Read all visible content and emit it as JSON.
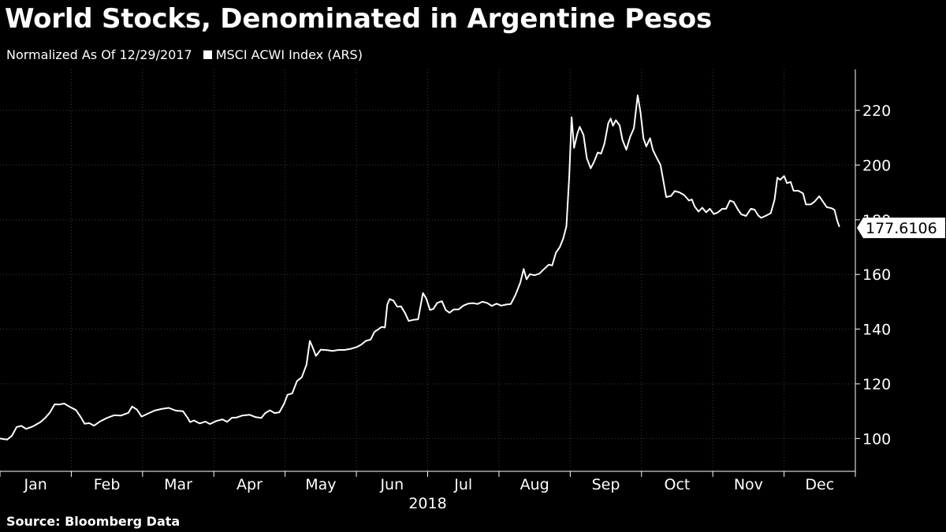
{
  "title": "World Stocks, Denominated in Argentine Pesos",
  "subtitle": "Normalized As Of 12/29/2017",
  "legend": [
    {
      "label": "MSCI ACWI Index (ARS)",
      "color": "#ffffff"
    }
  ],
  "source": "Source: Bloomberg Data",
  "chart_data": {
    "type": "line",
    "title": "World Stocks, Denominated in Argentine Pesos",
    "subtitle": "Normalized As Of 12/29/2017",
    "xlabel": "2018",
    "ylabel": "",
    "months": [
      "Jan",
      "Feb",
      "Mar",
      "Apr",
      "May",
      "Jun",
      "Jul",
      "Aug",
      "Sep",
      "Oct",
      "Nov",
      "Dec"
    ],
    "year_label": "2018",
    "ylim": [
      88,
      235
    ],
    "yticks": [
      100,
      120,
      140,
      160,
      180,
      200,
      220
    ],
    "grid": true,
    "last_value_label": "177.6106",
    "series": [
      {
        "name": "MSCI ACWI Index (ARS)",
        "color": "#ffffff",
        "points": [
          [
            0.0,
            100.0
          ],
          [
            0.15,
            99.6
          ],
          [
            0.25,
            101.0
          ],
          [
            0.35,
            104.2
          ],
          [
            0.45,
            104.6
          ],
          [
            0.55,
            103.5
          ],
          [
            0.7,
            104.5
          ],
          [
            0.85,
            106.0
          ],
          [
            0.95,
            107.5
          ],
          [
            1.05,
            109.5
          ],
          [
            1.15,
            112.5
          ],
          [
            1.25,
            112.4
          ],
          [
            1.35,
            112.8
          ],
          [
            1.5,
            111.3
          ],
          [
            1.6,
            110.4
          ],
          [
            1.7,
            107.8
          ],
          [
            1.78,
            105.4
          ],
          [
            1.88,
            105.6
          ],
          [
            1.98,
            104.7
          ],
          [
            2.1,
            106.2
          ],
          [
            2.25,
            107.5
          ],
          [
            2.4,
            108.5
          ],
          [
            2.55,
            108.4
          ],
          [
            2.7,
            109.4
          ],
          [
            2.78,
            111.7
          ],
          [
            2.88,
            110.6
          ],
          [
            2.98,
            108.0
          ],
          [
            3.1,
            109.0
          ],
          [
            3.25,
            110.2
          ],
          [
            3.4,
            110.8
          ],
          [
            3.55,
            111.2
          ],
          [
            3.7,
            110.2
          ],
          [
            3.85,
            110.0
          ],
          [
            3.95,
            107.5
          ],
          [
            4.0,
            106.0
          ],
          [
            4.08,
            106.6
          ],
          [
            4.2,
            105.5
          ],
          [
            4.32,
            106.2
          ],
          [
            4.42,
            105.3
          ],
          [
            4.55,
            106.4
          ],
          [
            4.68,
            107.0
          ],
          [
            4.78,
            106.1
          ],
          [
            4.88,
            107.6
          ],
          [
            4.98,
            107.7
          ],
          [
            5.1,
            108.4
          ],
          [
            5.25,
            108.7
          ],
          [
            5.38,
            107.8
          ],
          [
            5.5,
            107.5
          ],
          [
            5.58,
            109.3
          ],
          [
            5.68,
            110.3
          ],
          [
            5.78,
            109.3
          ],
          [
            5.88,
            109.6
          ],
          [
            5.98,
            112.8
          ],
          [
            6.05,
            116.0
          ],
          [
            6.15,
            116.5
          ],
          [
            6.25,
            121.0
          ],
          [
            6.35,
            122.4
          ],
          [
            6.45,
            127.0
          ],
          [
            6.52,
            135.7
          ],
          [
            6.58,
            133.3
          ],
          [
            6.65,
            130.2
          ],
          [
            6.75,
            132.5
          ],
          [
            6.88,
            132.3
          ],
          [
            7.0,
            132.0
          ],
          [
            7.12,
            132.4
          ],
          [
            7.25,
            132.4
          ],
          [
            7.38,
            132.8
          ],
          [
            7.5,
            133.4
          ],
          [
            7.6,
            134.3
          ],
          [
            7.7,
            135.7
          ],
          [
            7.8,
            136.2
          ],
          [
            7.88,
            139.0
          ],
          [
            7.95,
            139.8
          ],
          [
            8.03,
            140.8
          ],
          [
            8.1,
            140.6
          ],
          [
            8.15,
            149.0
          ],
          [
            8.2,
            151.0
          ],
          [
            8.28,
            150.4
          ],
          [
            8.36,
            148.2
          ],
          [
            8.44,
            148.3
          ],
          [
            8.52,
            146.0
          ],
          [
            8.6,
            143.0
          ],
          [
            8.7,
            143.4
          ],
          [
            8.8,
            143.6
          ],
          [
            8.9,
            153.2
          ],
          [
            8.97,
            151.2
          ],
          [
            9.05,
            147.0
          ],
          [
            9.12,
            147.4
          ],
          [
            9.2,
            149.6
          ],
          [
            9.3,
            150.2
          ],
          [
            9.38,
            147.0
          ],
          [
            9.46,
            146.0
          ],
          [
            9.55,
            147.2
          ],
          [
            9.65,
            147.2
          ],
          [
            9.75,
            148.6
          ],
          [
            9.85,
            149.3
          ],
          [
            9.95,
            149.5
          ],
          [
            10.05,
            149.2
          ],
          [
            10.15,
            150.0
          ],
          [
            10.25,
            149.6
          ],
          [
            10.35,
            148.5
          ],
          [
            10.45,
            149.3
          ],
          [
            10.55,
            148.6
          ],
          [
            10.65,
            149.0
          ],
          [
            10.75,
            149.2
          ],
          [
            10.85,
            152.6
          ],
          [
            10.95,
            157.0
          ],
          [
            11.02,
            162.0
          ],
          [
            11.08,
            158.2
          ],
          [
            11.15,
            160.1
          ],
          [
            11.25,
            159.7
          ],
          [
            11.35,
            160.3
          ],
          [
            11.45,
            162.0
          ],
          [
            11.55,
            163.6
          ],
          [
            11.62,
            163.3
          ],
          [
            11.7,
            168.0
          ],
          [
            11.78,
            170.0
          ],
          [
            11.85,
            173.0
          ],
          [
            11.92,
            177.6
          ],
          [
            11.98,
            196.0
          ],
          [
            12.03,
            217.5
          ],
          [
            12.08,
            206.3
          ],
          [
            12.15,
            211.5
          ],
          [
            12.2,
            214.0
          ],
          [
            12.28,
            211.0
          ],
          [
            12.35,
            202.5
          ],
          [
            12.43,
            198.8
          ],
          [
            12.5,
            201.2
          ],
          [
            12.58,
            204.6
          ],
          [
            12.65,
            204.2
          ],
          [
            12.72,
            207.8
          ],
          [
            12.8,
            215.3
          ],
          [
            12.85,
            217.0
          ],
          [
            12.9,
            214.4
          ],
          [
            12.96,
            216.4
          ],
          [
            13.04,
            214.5
          ],
          [
            13.1,
            209.2
          ],
          [
            13.18,
            205.6
          ],
          [
            13.26,
            210.3
          ],
          [
            13.34,
            213.5
          ],
          [
            13.42,
            225.5
          ],
          [
            13.48,
            219.3
          ],
          [
            13.54,
            209.8
          ],
          [
            13.6,
            206.8
          ],
          [
            13.68,
            209.8
          ],
          [
            13.74,
            205.5
          ],
          [
            13.82,
            202.7
          ],
          [
            13.9,
            200.0
          ],
          [
            13.96,
            194.2
          ],
          [
            14.02,
            188.3
          ],
          [
            14.12,
            188.7
          ],
          [
            14.2,
            190.5
          ],
          [
            14.3,
            190.0
          ],
          [
            14.4,
            189.0
          ],
          [
            14.5,
            187.0
          ],
          [
            14.56,
            187.4
          ],
          [
            14.62,
            184.8
          ],
          [
            14.7,
            183.0
          ],
          [
            14.78,
            184.4
          ],
          [
            14.86,
            182.7
          ],
          [
            14.94,
            184.0
          ],
          [
            15.02,
            182.1
          ],
          [
            15.1,
            182.6
          ],
          [
            15.2,
            184.0
          ],
          [
            15.28,
            184.0
          ],
          [
            15.36,
            187.0
          ],
          [
            15.44,
            186.5
          ],
          [
            15.52,
            184.0
          ],
          [
            15.6,
            182.0
          ],
          [
            15.7,
            181.4
          ],
          [
            15.8,
            184.0
          ],
          [
            15.88,
            183.7
          ],
          [
            15.96,
            181.5
          ],
          [
            16.02,
            180.7
          ],
          [
            16.12,
            181.5
          ],
          [
            16.22,
            182.4
          ],
          [
            16.3,
            187.3
          ],
          [
            16.36,
            195.4
          ],
          [
            16.42,
            194.6
          ],
          [
            16.5,
            196.0
          ],
          [
            16.56,
            193.4
          ],
          [
            16.64,
            193.8
          ],
          [
            16.7,
            190.6
          ],
          [
            16.8,
            190.6
          ],
          [
            16.9,
            189.6
          ],
          [
            16.96,
            185.6
          ],
          [
            17.06,
            185.6
          ],
          [
            17.14,
            186.6
          ],
          [
            17.24,
            188.6
          ],
          [
            17.32,
            186.6
          ],
          [
            17.4,
            184.6
          ],
          [
            17.5,
            184.2
          ],
          [
            17.56,
            183.6
          ],
          [
            17.62,
            179.6
          ],
          [
            17.66,
            177.6
          ]
        ]
      }
    ]
  }
}
